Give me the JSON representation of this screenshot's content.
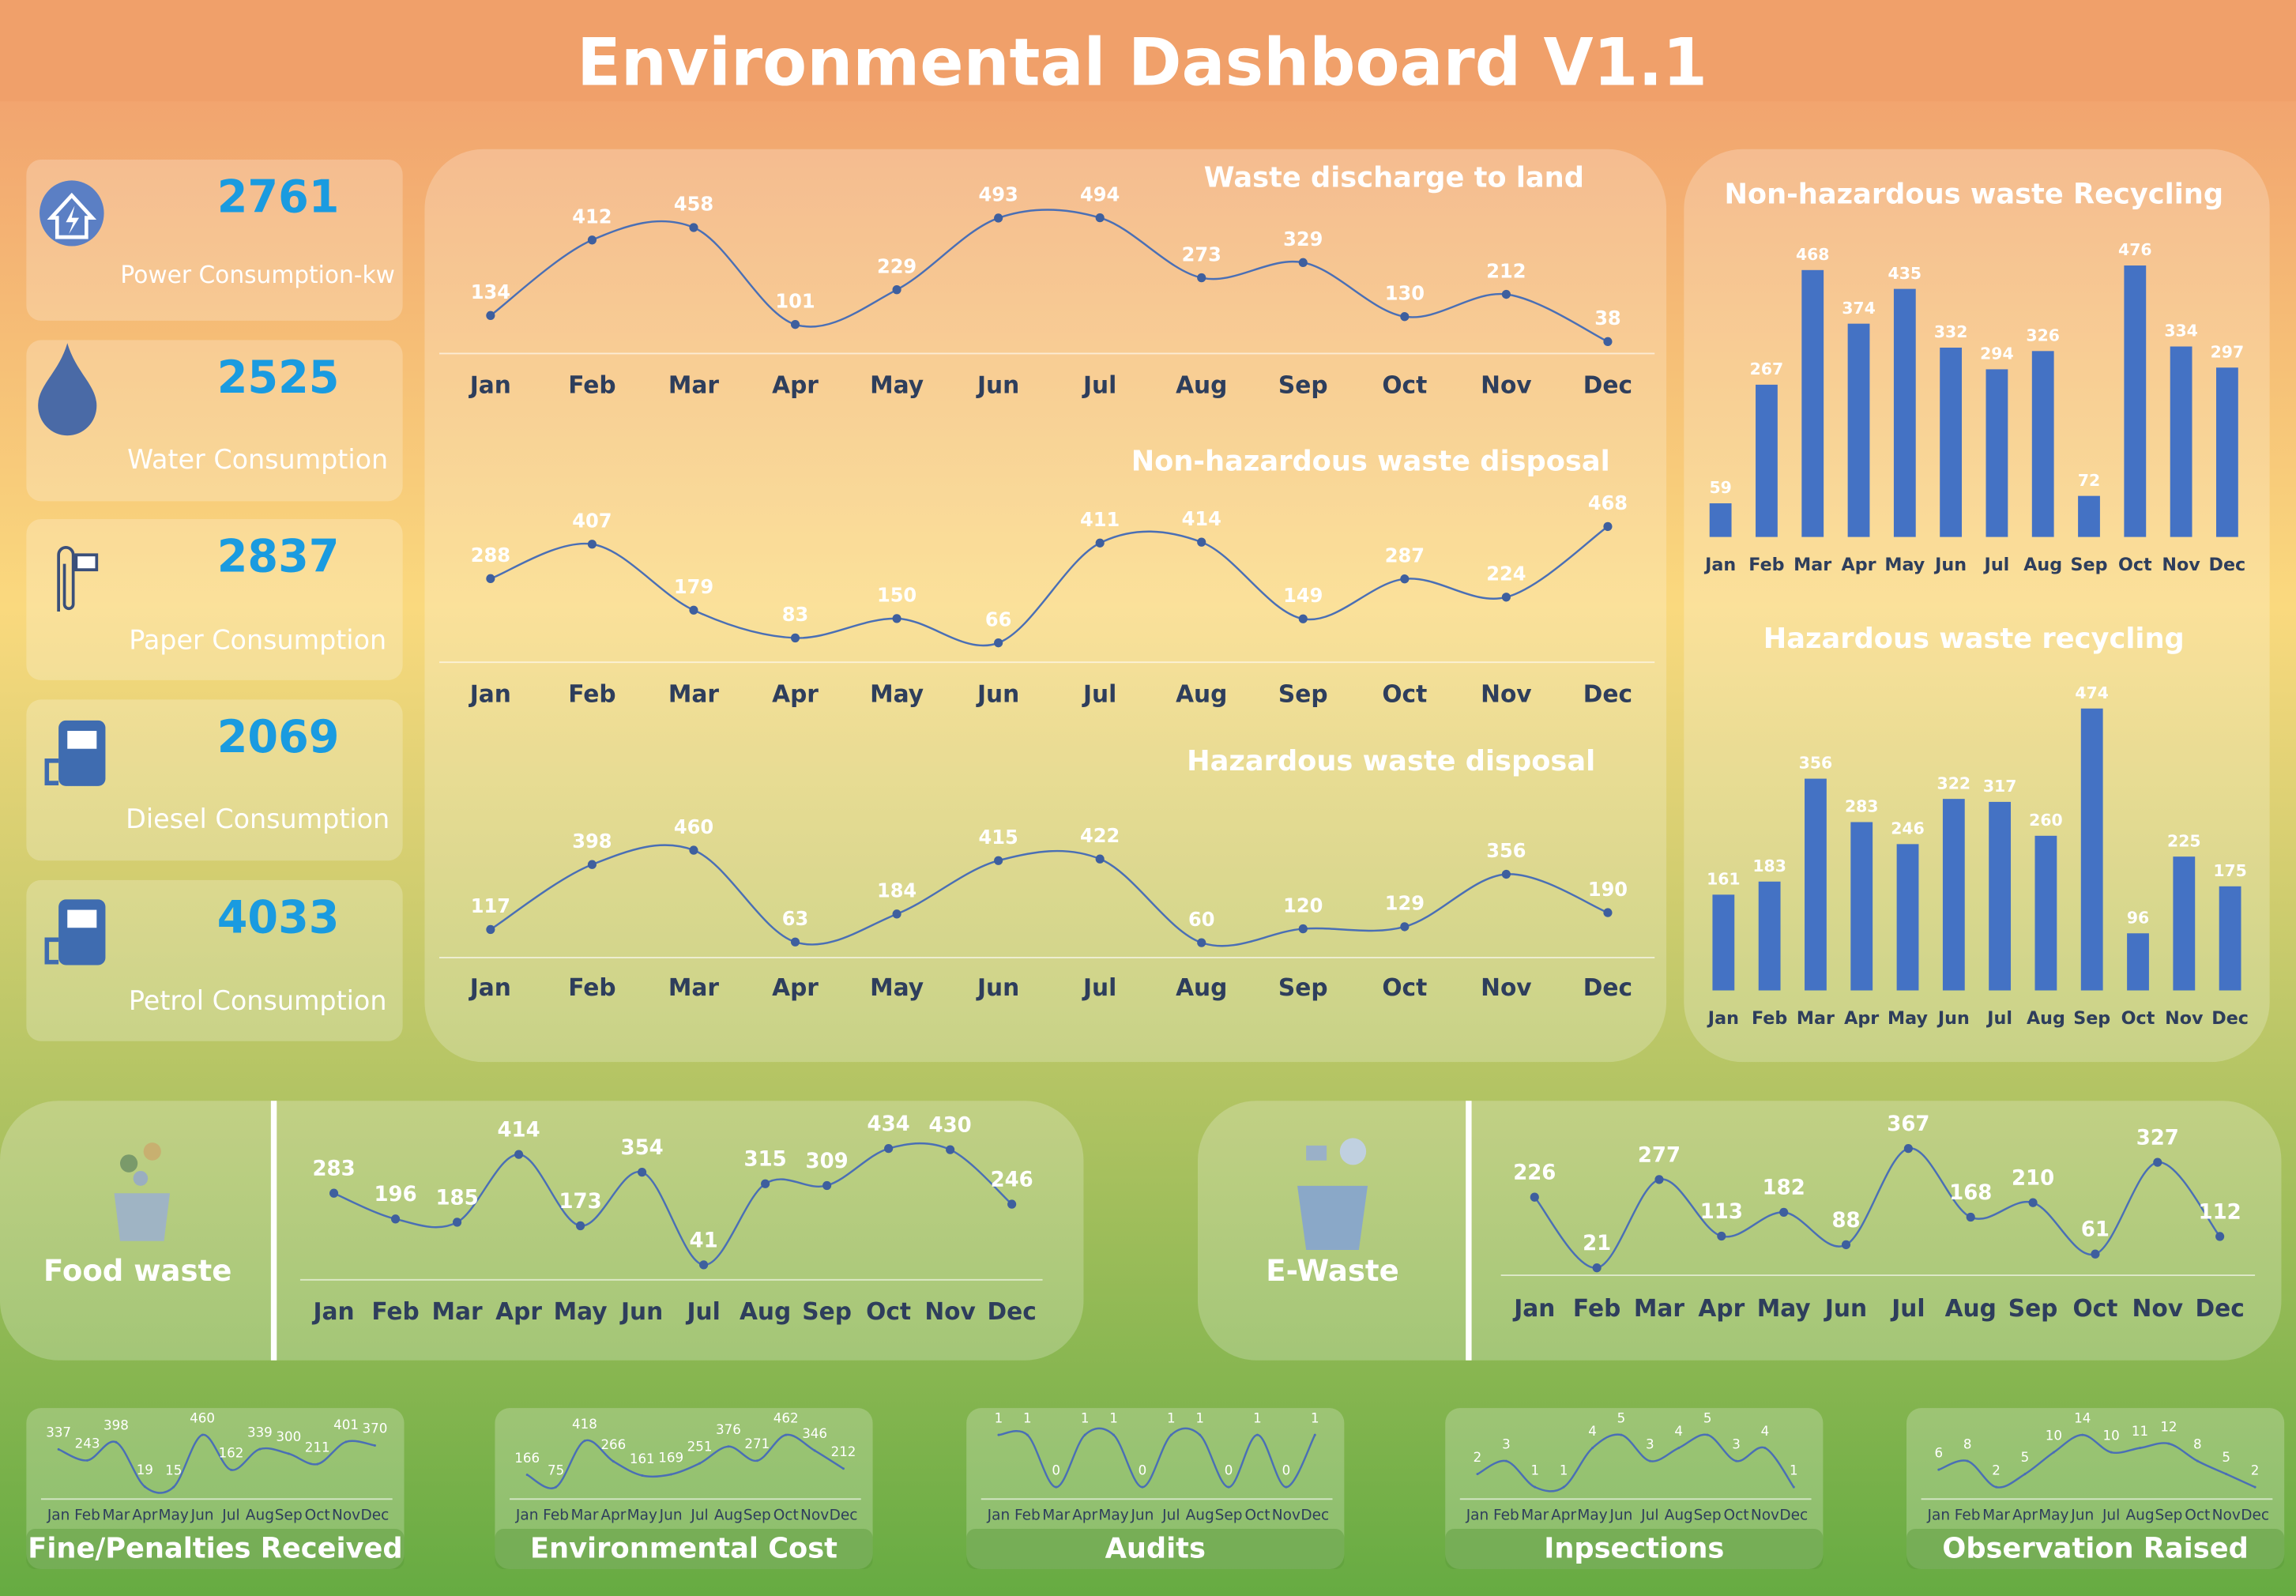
{
  "title": "Environmental Dashboard V1.1",
  "kpis": [
    {
      "value": 2761,
      "label": "Power Consumption-kw"
    },
    {
      "value": 2525,
      "label": "Water Consumption"
    },
    {
      "value": 2837,
      "label": "Paper Consumption"
    },
    {
      "value": 2069,
      "label": "Diesel Consumption"
    },
    {
      "value": 4033,
      "label": "Petrol Consumption"
    }
  ],
  "chart_data": [
    {
      "type": "line",
      "title": "Waste discharge to land",
      "color": "#4a6fb5",
      "categories": [
        "Jan",
        "Feb",
        "Mar",
        "Apr",
        "May",
        "Jun",
        "Jul",
        "Aug",
        "Sep",
        "Oct",
        "Nov",
        "Dec"
      ],
      "values": [
        134,
        412,
        458,
        101,
        229,
        493,
        494,
        273,
        329,
        130,
        212,
        38
      ]
    },
    {
      "type": "line",
      "title": "Non-hazardous waste disposal",
      "color": "#4a6fb5",
      "categories": [
        "Jan",
        "Feb",
        "Mar",
        "Apr",
        "May",
        "Jun",
        "Jul",
        "Aug",
        "Sep",
        "Oct",
        "Nov",
        "Dec"
      ],
      "values": [
        288,
        407,
        179,
        83,
        150,
        66,
        411,
        414,
        149,
        287,
        224,
        468
      ]
    },
    {
      "type": "line",
      "title": "Hazardous waste disposal",
      "color": "#4a6fb5",
      "categories": [
        "Jan",
        "Feb",
        "Mar",
        "Apr",
        "May",
        "Jun",
        "Jul",
        "Aug",
        "Sep",
        "Oct",
        "Nov",
        "Dec"
      ],
      "values": [
        117,
        398,
        460,
        63,
        184,
        415,
        422,
        60,
        120,
        129,
        356,
        190
      ]
    },
    {
      "type": "bar",
      "title": "Non-hazardous waste Recycling",
      "color": "#4472c4",
      "categories": [
        "Jan",
        "Feb",
        "Mar",
        "Apr",
        "May",
        "Jun",
        "Jul",
        "Aug",
        "Sep",
        "Oct",
        "Nov",
        "Dec"
      ],
      "values": [
        59,
        267,
        468,
        374,
        435,
        332,
        294,
        326,
        72,
        476,
        334,
        297
      ]
    },
    {
      "type": "bar",
      "title": "Hazardous waste recycling",
      "color": "#4472c4",
      "categories": [
        "Jan",
        "Feb",
        "Mar",
        "Apr",
        "May",
        "Jun",
        "Jul",
        "Aug",
        "Sep",
        "Oct",
        "Nov",
        "Dec"
      ],
      "values": [
        161,
        183,
        356,
        283,
        246,
        322,
        317,
        260,
        474,
        96,
        225,
        175
      ]
    },
    {
      "type": "line",
      "title": "Food waste",
      "color": "#4a6fb5",
      "categories": [
        "Jan",
        "Feb",
        "Mar",
        "Apr",
        "May",
        "Jun",
        "Jul",
        "Aug",
        "Sep",
        "Oct",
        "Nov",
        "Dec"
      ],
      "values": [
        283,
        196,
        185,
        414,
        173,
        354,
        41,
        315,
        309,
        434,
        430,
        246
      ]
    },
    {
      "type": "line",
      "title": "E-Waste",
      "color": "#4a6fb5",
      "categories": [
        "Jan",
        "Feb",
        "Mar",
        "Apr",
        "May",
        "Jun",
        "Jul",
        "Aug",
        "Sep",
        "Oct",
        "Nov",
        "Dec"
      ],
      "values": [
        226,
        21,
        277,
        113,
        182,
        88,
        367,
        168,
        210,
        61,
        327,
        112
      ]
    },
    {
      "type": "line",
      "title": "Fine/Penalties Received",
      "color": "#4a6fb5",
      "categories": [
        "Jan",
        "Feb",
        "Mar",
        "Apr",
        "May",
        "Jun",
        "Jul",
        "Aug",
        "Sep",
        "Oct",
        "Nov",
        "Dec"
      ],
      "values": [
        337,
        243,
        398,
        19,
        15,
        460,
        162,
        339,
        300,
        211,
        401,
        370
      ]
    },
    {
      "type": "line",
      "title": "Environmental Cost",
      "color": "#4a6fb5",
      "categories": [
        "Jan",
        "Feb",
        "Mar",
        "Apr",
        "May",
        "Jun",
        "Jul",
        "Aug",
        "Sep",
        "Oct",
        "Nov",
        "Dec"
      ],
      "values": [
        166,
        75,
        418,
        266,
        161,
        169,
        251,
        376,
        271,
        462,
        346,
        212
      ]
    },
    {
      "type": "line",
      "title": "Audits",
      "color": "#4a6fb5",
      "categories": [
        "Jan",
        "Feb",
        "Mar",
        "Apr",
        "May",
        "Jun",
        "Jul",
        "Aug",
        "Sep",
        "Oct",
        "Nov",
        "Dec"
      ],
      "values": [
        1,
        1,
        0,
        1,
        1,
        0,
        1,
        1,
        0,
        1,
        0,
        1
      ]
    },
    {
      "type": "line",
      "title": "Inpsections",
      "color": "#4a6fb5",
      "categories": [
        "Jan",
        "Feb",
        "Mar",
        "Apr",
        "May",
        "Jun",
        "Jul",
        "Aug",
        "Sep",
        "Oct",
        "Nov",
        "Dec"
      ],
      "values": [
        2,
        3,
        1,
        1,
        4,
        5,
        3,
        4,
        5,
        3,
        4,
        1
      ]
    },
    {
      "type": "line",
      "title": "Observation Raised",
      "color": "#4a6fb5",
      "categories": [
        "Jan",
        "Feb",
        "Mar",
        "Apr",
        "May",
        "Jun",
        "Jul",
        "Aug",
        "Sep",
        "Oct",
        "Nov",
        "Dec"
      ],
      "values": [
        6,
        8,
        2,
        5,
        10,
        14,
        10,
        11,
        12,
        8,
        5,
        2
      ]
    }
  ]
}
